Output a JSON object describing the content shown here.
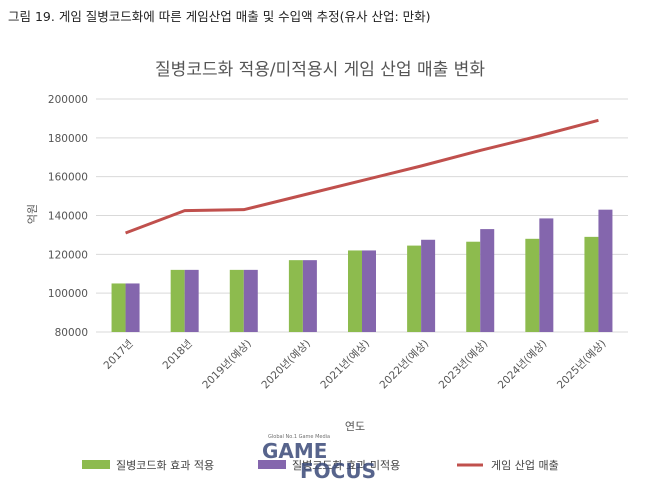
{
  "caption": "그림 19. 게임 질병코드화에 따른 게임산업 매출 및 수입액 추정(유사 산업: 만화)",
  "watermark": {
    "tagline": "Global No.1 Game Media",
    "brand_top": "GAME",
    "brand_bottom": "FOCUS"
  },
  "chart_data": {
    "type": "bar",
    "title": "질병코드화 적용/미적용시 게임 산업 매출 변화",
    "xlabel": "연도",
    "ylabel": "억원",
    "categories": [
      "2017년",
      "2018년",
      "2019년(예상)",
      "2020년(예상)",
      "2021년(예상)",
      "2022년(예상)",
      "2023년(예상)",
      "2024년(예상)",
      "2025년(예상)"
    ],
    "ylim": [
      80000,
      200000
    ],
    "yticks": [
      "80000",
      "100000",
      "120000",
      "140000",
      "160000",
      "180000",
      "200000"
    ],
    "grid": true,
    "legend_position": "bottom",
    "series": [
      {
        "name": "질병코드화 효과 적용",
        "type": "bar",
        "color": "#8dbb4e",
        "values": [
          105000,
          112000,
          112000,
          117000,
          122000,
          124500,
          126500,
          128000,
          129000
        ]
      },
      {
        "name": "질병코드화 효과 미적용",
        "type": "bar",
        "color": "#8466ad",
        "values": [
          105000,
          112000,
          112000,
          117000,
          122000,
          127500,
          133000,
          138500,
          143000
        ]
      },
      {
        "name": "게임 산업 매출",
        "type": "line",
        "color": "#c0504d",
        "values": [
          131000,
          142500,
          143000,
          150500,
          158000,
          165500,
          173500,
          181000,
          189000
        ]
      }
    ]
  }
}
